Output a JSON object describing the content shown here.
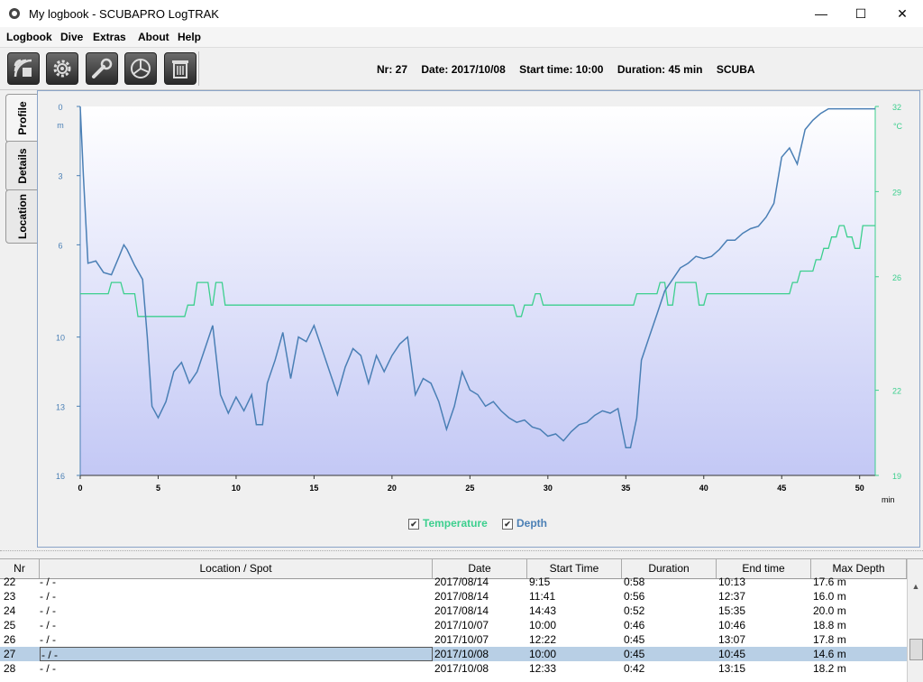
{
  "window": {
    "title": "My logbook - SCUBAPRO LogTRAK",
    "minimize": "—",
    "maximize": "☐",
    "close": "✕"
  },
  "menu": [
    "Logbook",
    "Dive",
    "Extras",
    "About",
    "Help"
  ],
  "toolbar": {
    "buttons": [
      "download-icon",
      "settings-gear-icon",
      "wrench-icon",
      "statistics-pie-icon",
      "trash-icon"
    ],
    "dive_info": {
      "nr": "Nr: 27",
      "date": "Date: 2017/10/08",
      "start": "Start time: 10:00",
      "duration": "Duration: 45 min",
      "type": "SCUBA"
    }
  },
  "tabs": [
    {
      "label": "Profile",
      "active": true
    },
    {
      "label": "Details",
      "active": false
    },
    {
      "label": "Location",
      "active": false
    }
  ],
  "chart_data": {
    "type": "line",
    "x_unit": "min",
    "xlim": [
      0,
      51
    ],
    "x_ticks": [
      "0",
      "5",
      "10",
      "15",
      "20",
      "25",
      "30",
      "35",
      "40",
      "45",
      "50"
    ],
    "depth_axis": {
      "unit": "m",
      "ylim": [
        0,
        16
      ],
      "ticks": [
        "0",
        "3",
        "6",
        "10",
        "13",
        "16"
      ],
      "reversed": true,
      "color": "#4a7fb5"
    },
    "temp_axis": {
      "unit": "°C",
      "ylim": [
        19,
        32
      ],
      "ticks": [
        "32",
        "29",
        "26",
        "22",
        "19"
      ],
      "color": "#3ccf8e"
    },
    "series": [
      {
        "name": "Depth",
        "color": "#4a7fb5",
        "x": [
          0,
          0.2,
          0.5,
          1,
          1.5,
          2,
          2.5,
          2.8,
          3,
          3.5,
          4,
          4.3,
          4.6,
          5,
          5.5,
          6,
          6.5,
          7,
          7.5,
          8,
          8.5,
          9,
          9.5,
          10,
          10.5,
          11,
          11.3,
          11.7,
          12,
          12.5,
          13,
          13.5,
          14,
          14.5,
          15,
          15.5,
          16,
          16.5,
          17,
          17.5,
          18,
          18.5,
          19,
          19.5,
          20,
          20.5,
          21,
          21.5,
          22,
          22.5,
          23,
          23.5,
          24,
          24.5,
          25,
          25.5,
          26,
          26.5,
          27,
          27.5,
          28,
          28.5,
          29,
          29.5,
          30,
          30.5,
          31,
          31.5,
          32,
          32.5,
          33,
          33.5,
          34,
          34.5,
          35,
          35.3,
          35.7,
          36,
          36.5,
          37,
          37.5,
          38,
          38.5,
          39,
          39.5,
          40,
          40.5,
          41,
          41.5,
          42,
          42.5,
          43,
          43.5,
          44,
          44.5,
          45,
          45.5,
          46,
          46.5,
          47,
          47.5,
          48,
          49,
          50,
          51
        ],
        "y": [
          0,
          3,
          6.8,
          6.7,
          7.2,
          7.3,
          6.5,
          6,
          6.2,
          6.9,
          7.5,
          10,
          13,
          13.5,
          12.8,
          11.5,
          11.1,
          12,
          11.5,
          10.5,
          9.5,
          12.5,
          13.3,
          12.6,
          13.2,
          12.5,
          13.8,
          13.8,
          12,
          11,
          9.8,
          11.8,
          10,
          10.2,
          9.5,
          10.5,
          11.5,
          12.5,
          11.3,
          10.5,
          10.8,
          12,
          10.8,
          11.5,
          10.8,
          10.3,
          10,
          12.5,
          11.8,
          12,
          12.8,
          14,
          13,
          11.5,
          12.3,
          12.5,
          13,
          12.8,
          13.2,
          13.5,
          13.7,
          13.6,
          13.9,
          14,
          14.3,
          14.2,
          14.5,
          14.1,
          13.8,
          13.7,
          13.4,
          13.2,
          13.3,
          13.1,
          14.8,
          14.8,
          13.5,
          11,
          10,
          9,
          8,
          7.5,
          7,
          6.8,
          6.5,
          6.6,
          6.5,
          6.2,
          5.8,
          5.8,
          5.5,
          5.3,
          5.2,
          4.8,
          4.2,
          2.2,
          1.8,
          2.5,
          1,
          0.6,
          0.3,
          0.1,
          0.1,
          0.1,
          0.1
        ]
      },
      {
        "name": "Temperature",
        "color": "#3ccf8e",
        "x": [
          0,
          1.8,
          2,
          2.6,
          2.8,
          3.5,
          3.7,
          6.7,
          6.9,
          7.3,
          7.5,
          8.2,
          8.4,
          8.5,
          8.7,
          9.1,
          9.3,
          9.5,
          9.7,
          20,
          20,
          27.8,
          28,
          28.3,
          28.5,
          29,
          29.2,
          29.5,
          29.7,
          30,
          30.2,
          35.5,
          35.7,
          37,
          37.2,
          37.5,
          37.7,
          38,
          38.2,
          39.5,
          39.7,
          40,
          40.2,
          45,
          45.2,
          45.5,
          45.7,
          46,
          46.2,
          46.5,
          46.7,
          47,
          47.2,
          47.5,
          47.7,
          48,
          48.2,
          48.5,
          48.7,
          49,
          49.2,
          49.5,
          49.7,
          50,
          50.2,
          51
        ],
        "y": [
          25.4,
          25.4,
          25.8,
          25.8,
          25.4,
          25.4,
          24.6,
          24.6,
          25,
          25,
          25.8,
          25.8,
          25,
          25,
          25.8,
          25.8,
          25,
          25,
          25,
          25,
          25,
          25,
          24.6,
          24.6,
          25,
          25,
          25.4,
          25.4,
          25,
          25,
          25,
          25,
          25.4,
          25.4,
          25.8,
          25.8,
          25,
          25,
          25.8,
          25.8,
          25,
          25,
          25.4,
          25.4,
          25.4,
          25.4,
          25.8,
          25.8,
          26.2,
          26.2,
          26.2,
          26.2,
          26.6,
          26.6,
          27,
          27,
          27.4,
          27.4,
          27.8,
          27.8,
          27.4,
          27.4,
          27,
          27,
          27.8,
          27.8
        ]
      }
    ]
  },
  "table": {
    "headers": [
      "Nr",
      "Location / Spot",
      "Date",
      "Start Time",
      "Duration",
      "End time",
      "Max Depth"
    ],
    "rows": [
      [
        "22",
        "- / -",
        "2017/08/14",
        "9:15",
        "0:58",
        "10:13",
        "17.6 m"
      ],
      [
        "23",
        "- / -",
        "2017/08/14",
        "11:41",
        "0:56",
        "12:37",
        "16.0 m"
      ],
      [
        "24",
        "- / -",
        "2017/08/14",
        "14:43",
        "0:52",
        "15:35",
        "20.0 m"
      ],
      [
        "25",
        "- / -",
        "2017/10/07",
        "10:00",
        "0:46",
        "10:46",
        "18.8 m"
      ],
      [
        "26",
        "- / -",
        "2017/10/07",
        "12:22",
        "0:45",
        "13:07",
        "17.8 m"
      ],
      [
        "27",
        "- / -",
        "2017/10/08",
        "10:00",
        "0:45",
        "10:45",
        "14.6 m"
      ],
      [
        "28",
        "- / -",
        "2017/10/08",
        "12:33",
        "0:42",
        "13:15",
        "18.2 m"
      ]
    ],
    "selected_index": 5
  }
}
